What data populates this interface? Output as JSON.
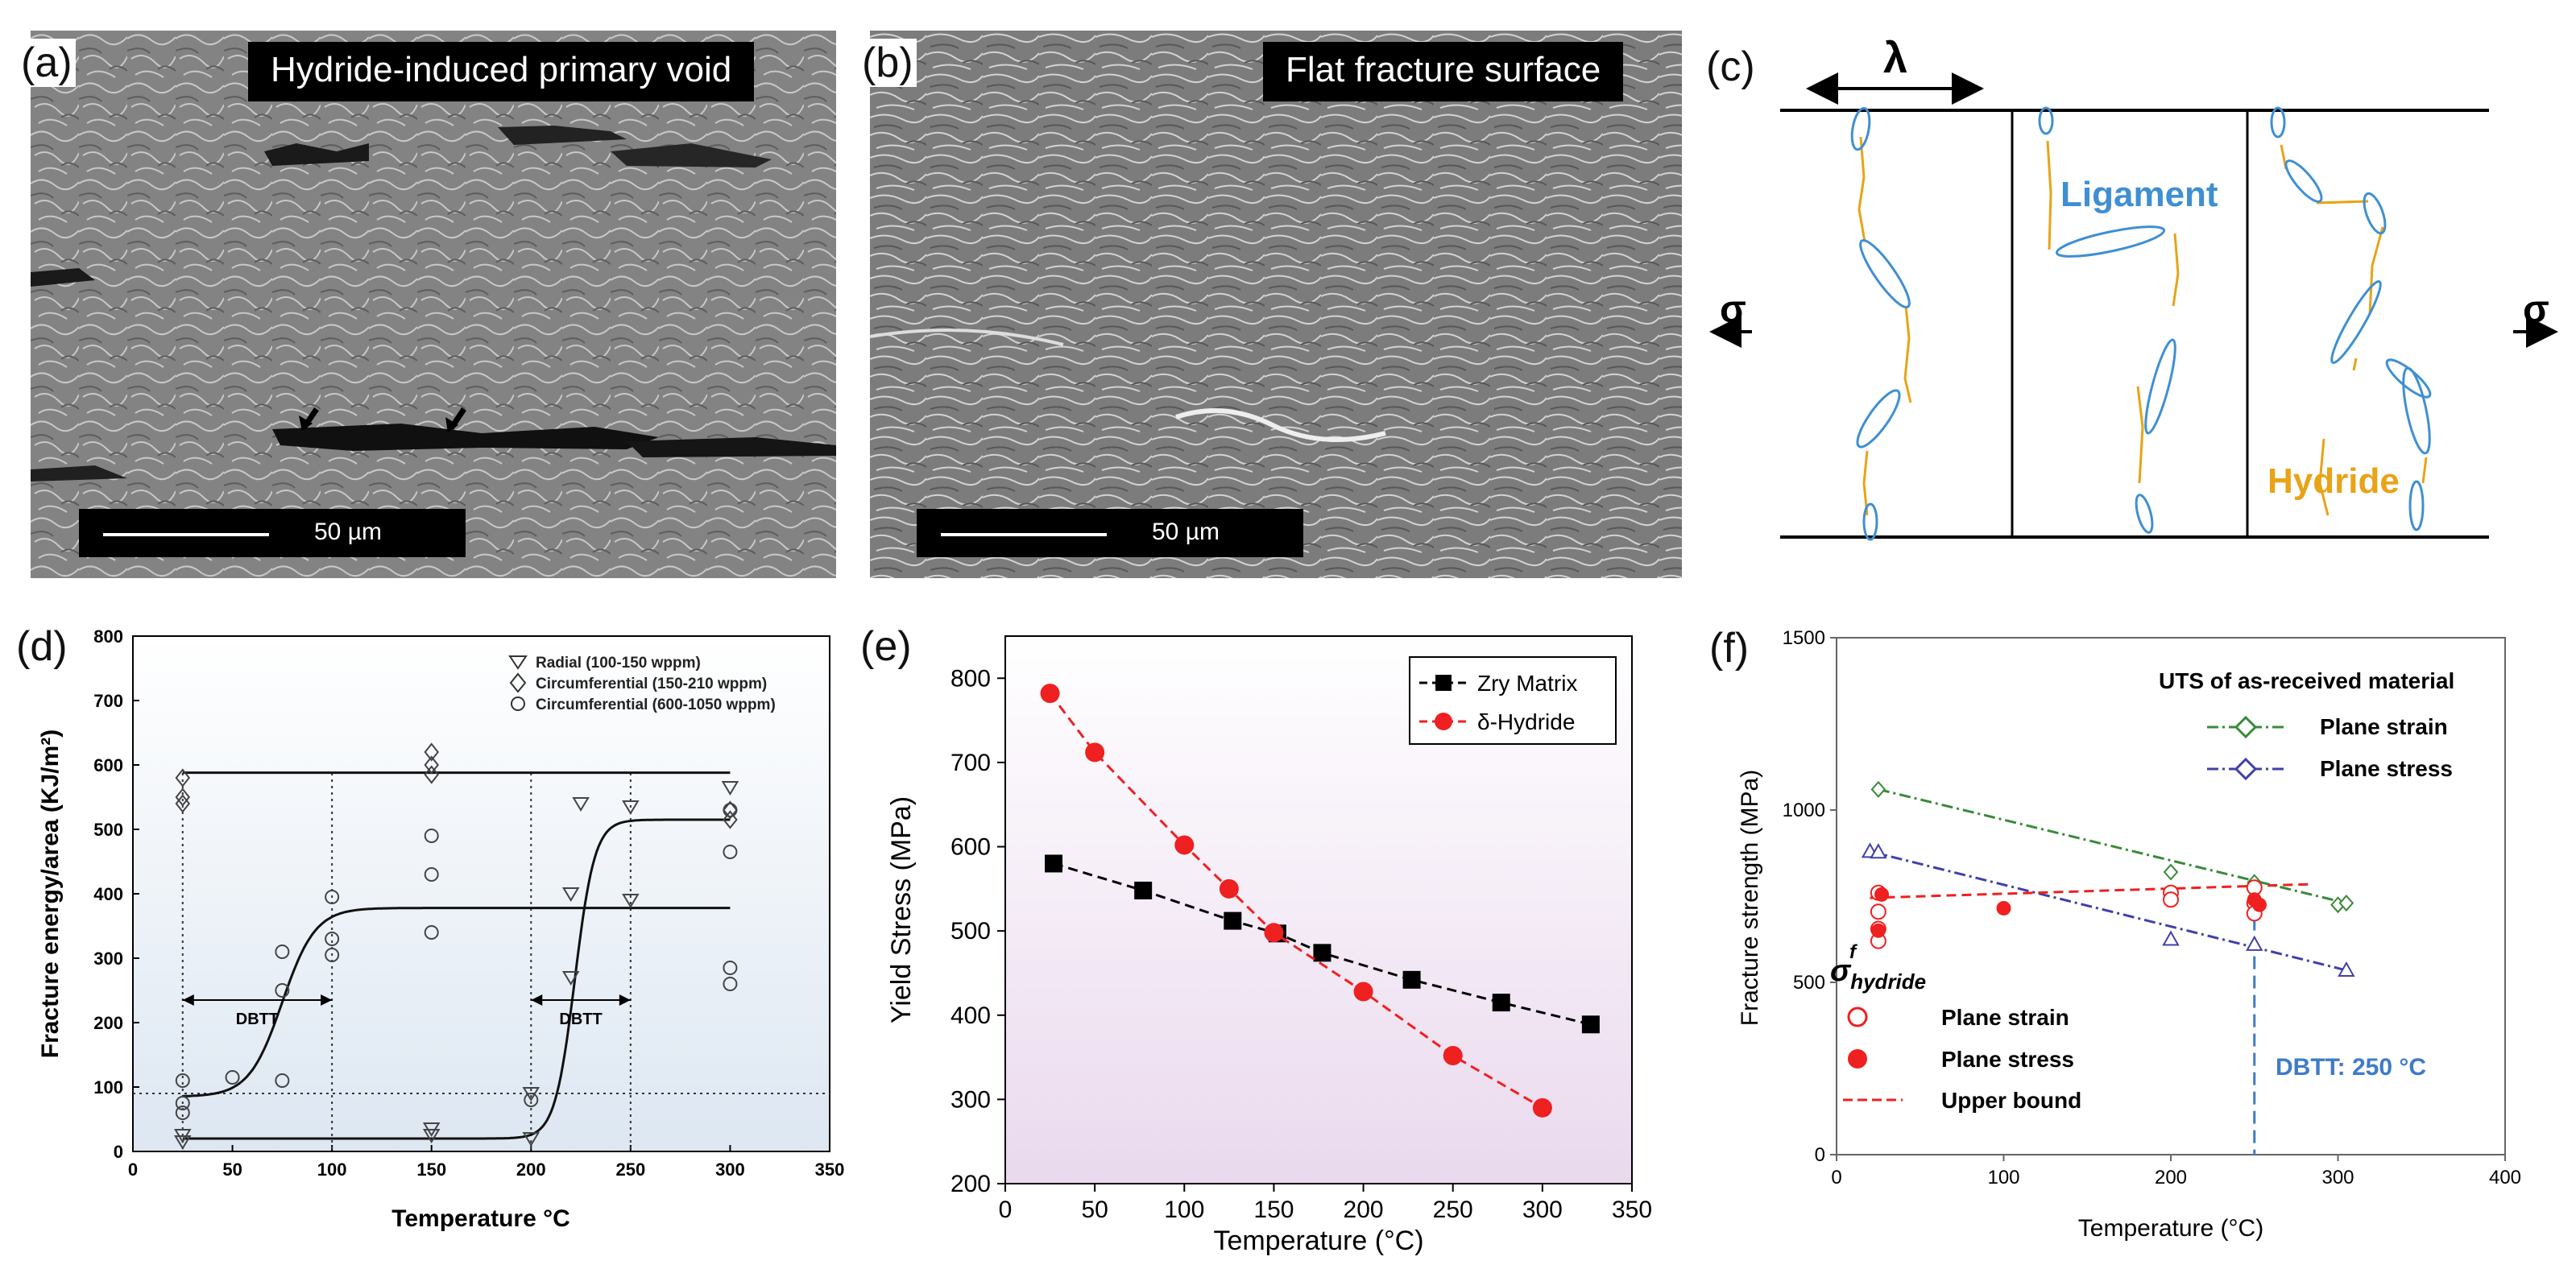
{
  "panels": {
    "a": {
      "label": "(a)",
      "title": "Hydride-induced primary void",
      "scale_bar": "50 µm"
    },
    "b": {
      "label": "(b)",
      "title": "Flat fracture surface",
      "scale_bar": "50 µm"
    },
    "c": {
      "label": "(c)",
      "lambda": "λ",
      "sigma_left": "σ",
      "sigma_right": "σ",
      "ligament_label": "Ligament",
      "hydride_label": "Hydride",
      "colors": {
        "hydride": "#E8A317",
        "ligament": "#3F8FD2"
      }
    },
    "d": {
      "label": "(d)"
    },
    "e": {
      "label": "(e)"
    },
    "f": {
      "label": "(f)"
    }
  },
  "chart_data": [
    {
      "id": "d",
      "type": "scatter",
      "xlabel": "Temperature °C",
      "ylabel": "Fracture energy/area (KJ/m²)",
      "xlim": [
        0,
        350
      ],
      "ylim": [
        0,
        800
      ],
      "xticks": [
        0,
        50,
        100,
        150,
        200,
        250,
        300,
        350
      ],
      "yticks": [
        0,
        100,
        200,
        300,
        400,
        500,
        600,
        700,
        800
      ],
      "legend": [
        "Radial (100-150 wppm)",
        "Circumferential (150-210 wppm)",
        "Circumferential (600-1050 wppm)"
      ],
      "annotations": [
        "DBTT",
        "DBTT"
      ],
      "series": [
        {
          "name": "Radial (100-150 wppm)",
          "marker": "triangle-down",
          "points": [
            [
              25,
              25
            ],
            [
              25,
              15
            ],
            [
              150,
              35
            ],
            [
              150,
              25
            ],
            [
              200,
              20
            ],
            [
              200,
              90
            ],
            [
              220,
              270
            ],
            [
              220,
              400
            ],
            [
              225,
              540
            ],
            [
              250,
              535
            ],
            [
              250,
              390
            ],
            [
              300,
              565
            ]
          ]
        },
        {
          "name": "Circumferential (150-210 wppm)",
          "marker": "diamond",
          "points": [
            [
              25,
              580
            ],
            [
              25,
              550
            ],
            [
              25,
              540
            ],
            [
              150,
              620
            ],
            [
              150,
              600
            ],
            [
              150,
              585
            ],
            [
              300,
              530
            ],
            [
              300,
              515
            ]
          ]
        },
        {
          "name": "Circumferential (600-1050 wppm)",
          "marker": "circle",
          "points": [
            [
              25,
              110
            ],
            [
              25,
              75
            ],
            [
              25,
              60
            ],
            [
              50,
              115
            ],
            [
              75,
              310
            ],
            [
              75,
              250
            ],
            [
              75,
              110
            ],
            [
              100,
              395
            ],
            [
              100,
              330
            ],
            [
              100,
              305
            ],
            [
              150,
              490
            ],
            [
              150,
              430
            ],
            [
              150,
              340
            ],
            [
              200,
              80
            ],
            [
              300,
              530
            ],
            [
              300,
              465
            ],
            [
              300,
              285
            ],
            [
              300,
              260
            ]
          ]
        }
      ],
      "curves": [
        {
          "name": "fit-radial",
          "lower": 20,
          "upper": 515,
          "mid": 222,
          "k": 0.2,
          "x": [
            25,
            300
          ]
        },
        {
          "name": "fit-circ-high",
          "lower": 85,
          "upper": 378,
          "mid": 75,
          "k": 0.12,
          "x": [
            25,
            300
          ]
        },
        {
          "name": "upper-shelf",
          "lower": 588,
          "upper": 588,
          "mid": 0,
          "k": 0,
          "x": [
            25,
            300
          ]
        }
      ],
      "vlines": [
        25,
        100,
        200,
        250
      ],
      "hline": 90,
      "dbtt_ranges": [
        [
          25,
          100,
          235
        ],
        [
          200,
          250,
          235
        ]
      ]
    },
    {
      "id": "e",
      "type": "line",
      "xlabel": "Temperature (°C)",
      "ylabel": "Yield Stress (MPa)",
      "xlim": [
        0,
        350
      ],
      "ylim": [
        200,
        850
      ],
      "xticks": [
        0,
        50,
        100,
        150,
        200,
        250,
        300,
        350
      ],
      "yticks": [
        200,
        300,
        400,
        500,
        600,
        700,
        800
      ],
      "series": [
        {
          "name": "Zry Matrix",
          "color": "#000000",
          "marker": "square",
          "x": [
            27,
            77,
            127,
            152,
            177,
            227,
            277,
            327
          ],
          "y": [
            580,
            548,
            512,
            497,
            474,
            442,
            415,
            389
          ]
        },
        {
          "name": "δ-Hydride",
          "color": "#EE2020",
          "marker": "circle",
          "x": [
            25,
            50,
            100,
            125,
            150,
            200,
            250,
            300
          ],
          "y": [
            782,
            712,
            602,
            550,
            498,
            428,
            352,
            290
          ]
        }
      ]
    },
    {
      "id": "f",
      "type": "scatter",
      "xlabel": "Temperature (°C)",
      "ylabel": "Fracture strength (MPa)",
      "xlim": [
        0,
        400
      ],
      "ylim": [
        0,
        1500
      ],
      "xticks": [
        0,
        100,
        200,
        300,
        400
      ],
      "yticks": [
        0,
        500,
        1000,
        1500
      ],
      "legend_title": "UTS of as-received material",
      "legend_uts": [
        "Plane strain",
        "Plane stress"
      ],
      "legend_hydride": [
        "Plane strain",
        "Plane stress",
        "Upper bound"
      ],
      "hydride_symbol": "σ",
      "hydride_sup": "f",
      "hydride_sub": "hydride",
      "dbtt_label": "DBTT: 250 °C",
      "dbtt_x": 250,
      "uts_series": [
        {
          "name": "Plane strain",
          "color": "#3A8A3A",
          "marker": "diamond",
          "x": [
            25,
            200,
            250,
            300,
            305
          ],
          "y": [
            1060,
            820,
            790,
            725,
            730
          ]
        },
        {
          "name": "Plane stress",
          "color": "#4040A8",
          "marker": "triangle",
          "x": [
            20,
            25,
            200,
            250,
            305
          ],
          "y": [
            880,
            878,
            625,
            610,
            535
          ]
        }
      ],
      "hydride_series": [
        {
          "name": "Plane strain",
          "color": "#EE2020",
          "marker": "circle-open",
          "points": [
            [
              25,
              760
            ],
            [
              25,
              705
            ],
            [
              25,
              655
            ],
            [
              25,
              620
            ],
            [
              200,
              760
            ],
            [
              200,
              740
            ],
            [
              250,
              775
            ],
            [
              250,
              730
            ],
            [
              250,
              700
            ]
          ]
        },
        {
          "name": "Plane stress",
          "color": "#EE2020",
          "marker": "circle-filled",
          "points": [
            [
              25,
              650
            ],
            [
              27,
              755
            ],
            [
              100,
              715
            ],
            [
              250,
              740
            ],
            [
              253,
              725
            ]
          ]
        }
      ],
      "upper_bound": {
        "name": "Upper bound",
        "x": [
          20,
          285
        ],
        "y": [
          745,
          785
        ]
      }
    }
  ]
}
